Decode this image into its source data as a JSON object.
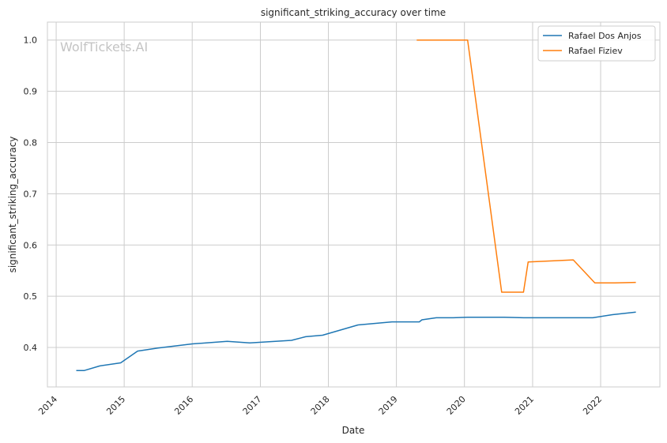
{
  "chart_data": {
    "type": "line",
    "title": "significant_striking_accuracy over time",
    "xlabel": "Date",
    "ylabel": "significant_striking_accuracy",
    "watermark": "WolfTickets.AI",
    "x_ticks": [
      "2014",
      "2015",
      "2016",
      "2017",
      "2018",
      "2019",
      "2020",
      "2021",
      "2022"
    ],
    "y_ticks": [
      "0.4",
      "0.5",
      "0.6",
      "0.7",
      "0.8",
      "0.9",
      "1.0"
    ],
    "xlim": [
      "2013-11-15",
      "2022-11-15"
    ],
    "ylim": [
      0.323,
      1.035
    ],
    "grid": true,
    "legend_position": "top-right",
    "series": [
      {
        "name": "Rafael Dos Anjos",
        "color": "#1f77b4",
        "points": [
          [
            "2014-04-19",
            0.355
          ],
          [
            "2014-06-01",
            0.355
          ],
          [
            "2014-08-23",
            0.364
          ],
          [
            "2014-12-13",
            0.37
          ],
          [
            "2015-03-14",
            0.393
          ],
          [
            "2015-07-01",
            0.399
          ],
          [
            "2016-01-01",
            0.407
          ],
          [
            "2016-07-07",
            0.412
          ],
          [
            "2016-11-05",
            0.409
          ],
          [
            "2017-06-17",
            0.414
          ],
          [
            "2017-09-01",
            0.421
          ],
          [
            "2017-12-01",
            0.424
          ],
          [
            "2018-06-09",
            0.444
          ],
          [
            "2018-12-08",
            0.45
          ],
          [
            "2019-05-04",
            0.45
          ],
          [
            "2019-05-18",
            0.454
          ],
          [
            "2019-08-03",
            0.458
          ],
          [
            "2019-11-02",
            0.458
          ],
          [
            "2020-01-18",
            0.459
          ],
          [
            "2020-08-01",
            0.459
          ],
          [
            "2020-11-14",
            0.458
          ],
          [
            "2021-11-20",
            0.458
          ],
          [
            "2022-03-05",
            0.464
          ],
          [
            "2022-07-09",
            0.469
          ]
        ]
      },
      {
        "name": "Rafael Fiziev",
        "color": "#ff7f0e",
        "points": [
          [
            "2019-04-20",
            1.0
          ],
          [
            "2020-01-18",
            1.0
          ],
          [
            "2020-07-19",
            0.508
          ],
          [
            "2020-11-13",
            0.508
          ],
          [
            "2020-12-08",
            0.567
          ],
          [
            "2021-08-07",
            0.571
          ],
          [
            "2021-12-01",
            0.526
          ],
          [
            "2022-03-19",
            0.526
          ],
          [
            "2022-07-09",
            0.527
          ]
        ]
      }
    ]
  }
}
